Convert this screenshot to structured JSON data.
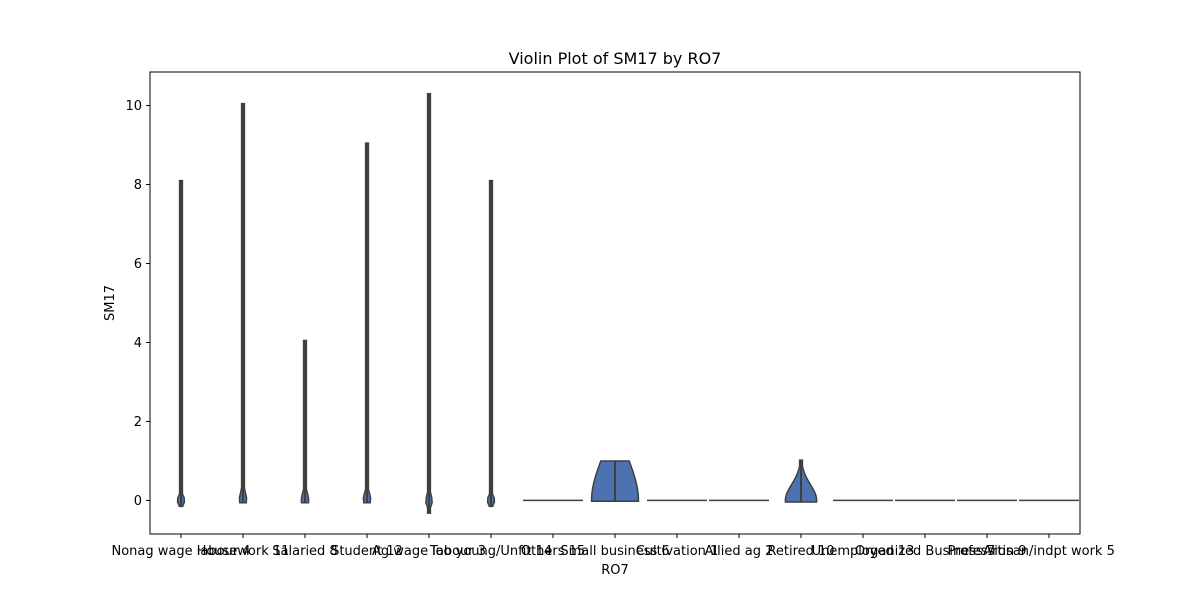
{
  "chart_data": {
    "type": "violin",
    "title": "Violin Plot of SM17 by RO7",
    "xlabel": "RO7",
    "ylabel": "SM17",
    "ylim": [
      -0.85,
      10.85
    ],
    "yticks": [
      0,
      2,
      4,
      6,
      8,
      10
    ],
    "grid": false,
    "colors": {
      "violin_fill": "#4c72b0",
      "violin_edge": "#3f3f3f",
      "frame": "#000000"
    },
    "categories": [
      "Nonag wage labour 4",
      "Housework 11",
      "Salaried 8",
      "Student 12",
      "Ag wage labour 3",
      "Too young/Unfit 14",
      "Others 15",
      "Small business 6",
      "Cultivation 1",
      "Allied ag 2",
      "Retired 10",
      "Unemployed 13",
      "Organized Business 7",
      "Profession 9",
      "Artisan/indpt work 5"
    ],
    "series": [
      {
        "min": -0.15,
        "max": 8.1,
        "mode": 0.0,
        "spread": 0.12
      },
      {
        "min": -0.06,
        "max": 10.05,
        "mode": 0.03,
        "spread": 0.18
      },
      {
        "min": -0.06,
        "max": 4.05,
        "mode": 0.0,
        "spread": 0.2
      },
      {
        "min": -0.06,
        "max": 9.05,
        "mode": 0.03,
        "spread": 0.18
      },
      {
        "min": -0.32,
        "max": 10.3,
        "mode": 0.0,
        "spread": 0.1
      },
      {
        "min": -0.15,
        "max": 8.1,
        "mode": 0.0,
        "spread": 0.12
      },
      {
        "min": 0.0,
        "max": 0.0,
        "mode": 0.0,
        "spread": 0.0
      },
      {
        "min": -0.02,
        "max": 1.0,
        "mode": 0.0,
        "spread": 1.0
      },
      {
        "min": 0.0,
        "max": 0.0,
        "mode": 0.0,
        "spread": 0.0
      },
      {
        "min": 0.0,
        "max": 0.0,
        "mode": 0.0,
        "spread": 0.0
      },
      {
        "min": -0.04,
        "max": 1.02,
        "mode": 0.0,
        "spread": 0.4
      },
      {
        "min": 0.0,
        "max": 0.0,
        "mode": 0.0,
        "spread": 0.0
      },
      {
        "min": 0.0,
        "max": 0.0,
        "mode": 0.0,
        "spread": 0.0
      },
      {
        "min": 0.0,
        "max": 0.0,
        "mode": 0.0,
        "spread": 0.0
      },
      {
        "min": 0.0,
        "max": 0.0,
        "mode": 0.0,
        "spread": 0.0
      }
    ]
  }
}
